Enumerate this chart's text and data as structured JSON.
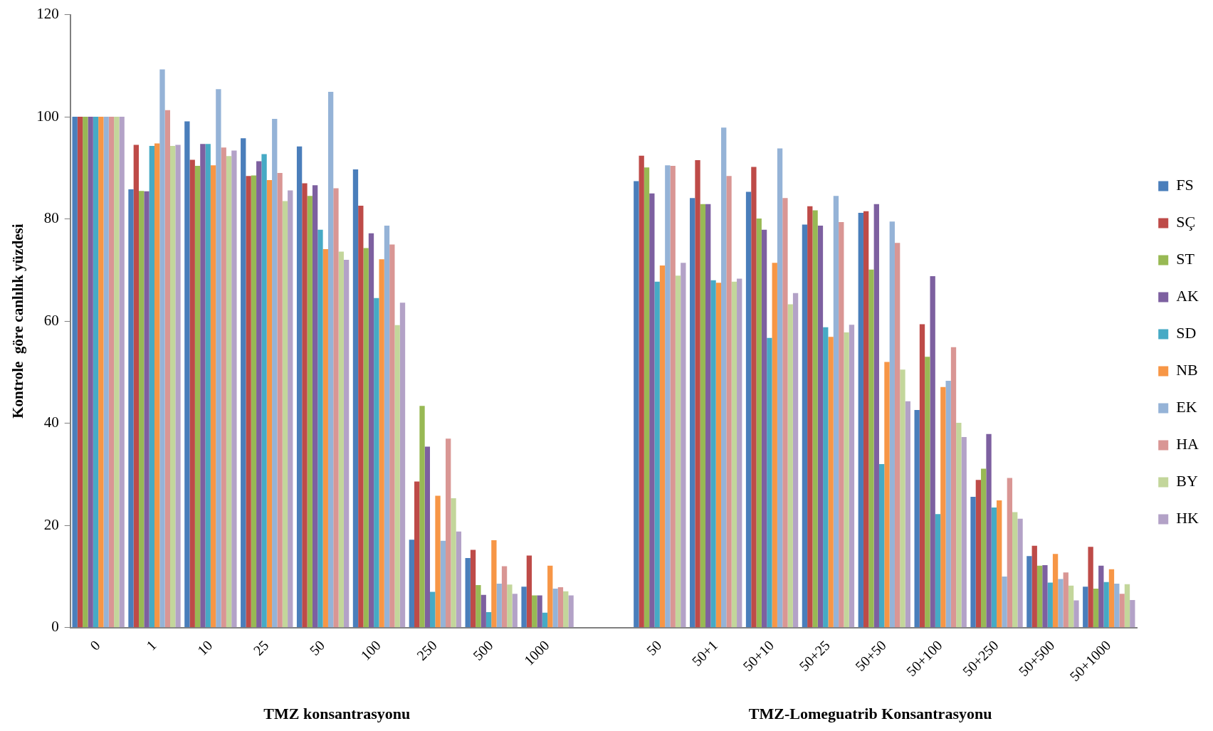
{
  "chart_data": {
    "type": "bar",
    "ylabel": "Kontrole  göre canlılık yüzdesi",
    "xlabel": "TMZ konsantrasyonu",
    "annotations": [
      "TMZ-Lomeguatrib Konsantrasyonu"
    ],
    "categories": [
      "0",
      "1",
      "10",
      "25",
      "50",
      "100",
      "250",
      "500",
      "1000",
      null,
      "50",
      "50+1",
      "50+10",
      "50+25",
      "50+50",
      "50+100",
      "50+250",
      "50+500",
      "50+1000"
    ],
    "ylim": [
      0,
      120
    ],
    "yticks": [
      0,
      20,
      40,
      60,
      80,
      100,
      120
    ],
    "grid": false,
    "legend": "right",
    "series": [
      {
        "name": "FS",
        "color": "#4a7ebb",
        "values": [
          100,
          85.8,
          99.1,
          95.8,
          94.2,
          89.7,
          17.2,
          13.6,
          8.0,
          null,
          87.4,
          84.1,
          85.3,
          78.9,
          81.2,
          42.6,
          25.6,
          14.0,
          8.0
        ]
      },
      {
        "name": "SÇ",
        "color": "#be4b48",
        "values": [
          100,
          94.5,
          91.6,
          88.4,
          87.0,
          82.6,
          28.6,
          15.2,
          14.1,
          null,
          92.4,
          91.5,
          90.2,
          82.5,
          81.5,
          59.4,
          28.9,
          16.0,
          15.8
        ]
      },
      {
        "name": "ST",
        "color": "#98b954",
        "values": [
          100,
          85.5,
          90.4,
          88.5,
          84.5,
          74.3,
          43.4,
          8.3,
          6.3,
          null,
          90.1,
          82.9,
          80.1,
          81.7,
          70.1,
          53.0,
          31.1,
          12.1,
          7.6
        ]
      },
      {
        "name": "AK",
        "color": "#7d60a0",
        "values": [
          100,
          85.4,
          94.7,
          91.3,
          86.6,
          77.2,
          35.4,
          6.4,
          6.3,
          null,
          85.0,
          82.9,
          77.9,
          78.7,
          82.9,
          68.8,
          37.9,
          12.2,
          12.1
        ]
      },
      {
        "name": "SD",
        "color": "#46aac5",
        "values": [
          100,
          94.3,
          94.7,
          92.7,
          77.9,
          64.5,
          7.0,
          3.0,
          2.9,
          null,
          67.7,
          68.0,
          56.7,
          58.8,
          32.0,
          22.2,
          23.5,
          8.8,
          8.9
        ]
      },
      {
        "name": "NB",
        "color": "#f79646",
        "values": [
          100,
          94.8,
          90.5,
          87.6,
          74.1,
          72.1,
          25.8,
          17.1,
          12.1,
          null,
          70.9,
          67.5,
          71.4,
          56.9,
          52.0,
          47.1,
          24.9,
          14.4,
          11.4
        ]
      },
      {
        "name": "EK",
        "color": "#95b3d7",
        "values": [
          100,
          109.3,
          105.4,
          99.6,
          104.9,
          78.7,
          17.0,
          8.6,
          7.6,
          null,
          90.5,
          97.9,
          93.8,
          84.5,
          79.5,
          48.3,
          10.0,
          9.5,
          8.6
        ]
      },
      {
        "name": "HA",
        "color": "#d99694",
        "values": [
          100,
          101.3,
          94.0,
          89.0,
          86.0,
          75.0,
          37.0,
          12.0,
          7.9,
          null,
          90.4,
          88.4,
          84.1,
          79.4,
          75.3,
          54.9,
          29.3,
          10.8,
          6.6
        ]
      },
      {
        "name": "BY",
        "color": "#c3d69b",
        "values": [
          100,
          94.3,
          92.3,
          83.5,
          73.6,
          59.2,
          25.3,
          8.4,
          7.1,
          null,
          68.9,
          67.7,
          63.3,
          57.8,
          50.5,
          40.1,
          22.6,
          8.2,
          8.5
        ]
      },
      {
        "name": "HK",
        "color": "#b3a2c7",
        "values": [
          100,
          94.5,
          93.4,
          85.6,
          72.0,
          63.6,
          18.8,
          6.6,
          6.3,
          null,
          71.4,
          68.3,
          65.5,
          59.3,
          44.3,
          37.3,
          21.3,
          5.3,
          5.4
        ]
      }
    ]
  }
}
